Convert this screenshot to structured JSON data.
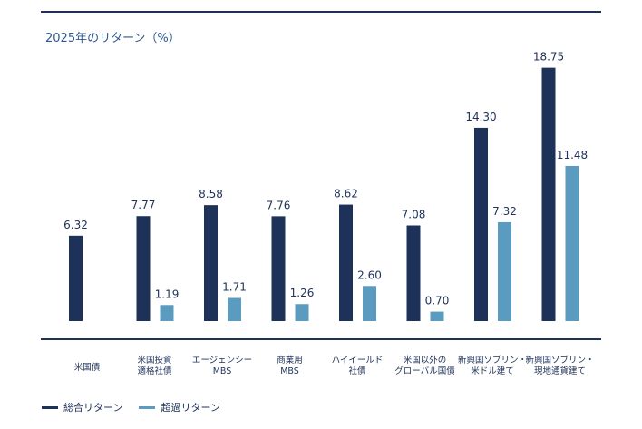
{
  "chart_data": {
    "type": "bar",
    "title": "2025年のリターン（%）",
    "categories": [
      [
        "米国債"
      ],
      [
        "米国投資",
        "適格社債"
      ],
      [
        "エージェンシー",
        "MBS"
      ],
      [
        "商業用",
        "MBS"
      ],
      [
        "ハイイールド",
        "社債"
      ],
      [
        "米国以外の",
        "グローバル国債"
      ],
      [
        "新興国ソブリン・",
        "米ドル建て"
      ],
      [
        "新興国ソブリン・",
        "現地通貨建て"
      ]
    ],
    "series": [
      {
        "name": "総合リターン",
        "color": "#1e3158",
        "values": [
          6.32,
          7.77,
          8.58,
          7.76,
          8.62,
          7.08,
          14.3,
          18.75
        ]
      },
      {
        "name": "超過リターン",
        "color": "#5b9bbf",
        "values": [
          null,
          1.19,
          1.71,
          1.26,
          2.6,
          0.7,
          7.32,
          11.48
        ]
      }
    ],
    "ylim": [
      0,
      20
    ],
    "xlabel": "",
    "ylabel": "",
    "legend": "bottom-left",
    "grid": false
  }
}
